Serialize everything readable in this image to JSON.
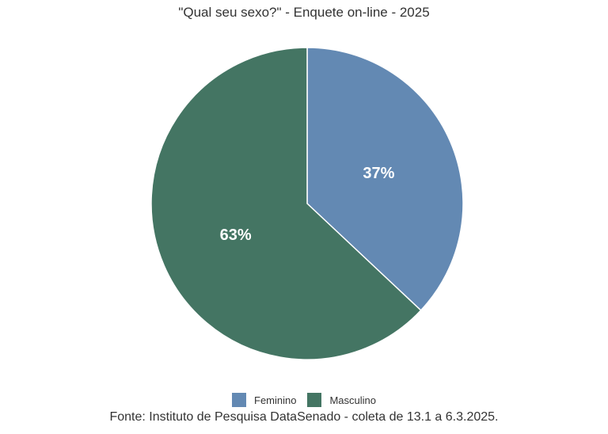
{
  "chart_data": {
    "type": "pie",
    "title": "\"Qual seu sexo?\" - Enquete on-line - 2025",
    "categories": [
      "Feminino",
      "Masculino"
    ],
    "values": [
      37,
      63
    ],
    "labels": [
      "37%",
      "63%"
    ],
    "colors": [
      "#6389b3",
      "#447563"
    ],
    "legend": "bottom",
    "source": "Fonte: Instituto de Pesquisa DataSenado - coleta de 13.1 a 6.3.2025."
  }
}
